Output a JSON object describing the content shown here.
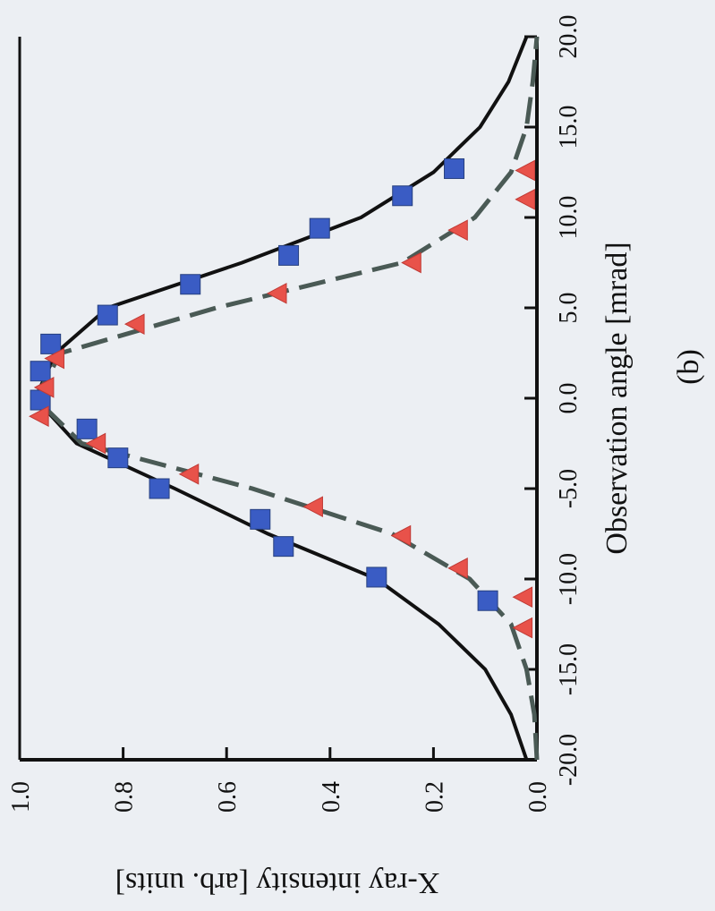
{
  "chart_data": {
    "type": "line",
    "x_label": "Observation angle [mrad]",
    "y_label": "X-ray intensity [arb. units]",
    "annotation": "(b)",
    "xlim": [
      -20,
      20
    ],
    "xticks": [
      {
        "value": -20,
        "label": "-20.0"
      },
      {
        "value": -15,
        "label": "-15.0"
      },
      {
        "value": -10,
        "label": "-10.0"
      },
      {
        "value": -5,
        "label": "-5.0"
      },
      {
        "value": 0,
        "label": "0.0"
      },
      {
        "value": 5,
        "label": "5.0"
      },
      {
        "value": 10,
        "label": "10.0"
      },
      {
        "value": 15,
        "label": "15.0"
      },
      {
        "value": 20,
        "label": "20.0"
      }
    ],
    "ylim": [
      0,
      1
    ],
    "yticks": [
      {
        "value": 0,
        "label": "0.0"
      },
      0.2,
      0.4,
      0.6,
      0.8,
      {
        "value": 1,
        "label": "1.0"
      }
    ],
    "series": [
      {
        "style": "solid",
        "color": "#111111",
        "x": [
          -20,
          -17.5,
          -15,
          -12.5,
          -10,
          -7.5,
          -5,
          -2.5,
          0,
          2.5,
          5,
          7.5,
          10,
          12.5,
          15,
          17.5,
          20
        ],
        "values": [
          0.02,
          0.05,
          0.1,
          0.19,
          0.31,
          0.52,
          0.7,
          0.89,
          0.97,
          0.93,
          0.83,
          0.57,
          0.34,
          0.2,
          0.11,
          0.055,
          0.02
        ]
      },
      {
        "style": "dashed",
        "color": "#4a5a55",
        "x": [
          -20,
          -17.5,
          -15,
          -12.5,
          -10,
          -7.5,
          -5,
          -2.5,
          0,
          2.5,
          5,
          7.5,
          10,
          12.5,
          15,
          17.5,
          20
        ],
        "values": [
          0,
          0.005,
          0.02,
          0.05,
          0.13,
          0.28,
          0.55,
          0.88,
          0.97,
          0.92,
          0.62,
          0.26,
          0.12,
          0.05,
          0.02,
          0.008,
          0
        ]
      },
      {
        "style": "square",
        "color": "#3a5cc4",
        "x": [
          -11.2,
          -9.9,
          -8.2,
          -6.7,
          -5.0,
          -3.3,
          -1.7,
          -0.1,
          1.5,
          3.0,
          4.6,
          6.3,
          7.9,
          9.4,
          11.2,
          12.7
        ],
        "values": [
          0.095,
          0.31,
          0.49,
          0.535,
          0.73,
          0.81,
          0.87,
          0.96,
          0.96,
          0.94,
          0.83,
          0.67,
          0.48,
          0.42,
          0.26,
          0.16
        ]
      },
      {
        "style": "triangle",
        "color": "#e8524a",
        "x": [
          -12.7,
          -11.0,
          -9.4,
          -7.6,
          -6.0,
          -4.2,
          -2.5,
          -1.0,
          0.6,
          2.2,
          4.1,
          5.8,
          7.5,
          9.3,
          11.0,
          12.6
        ],
        "values": [
          0.025,
          0.025,
          0.15,
          0.26,
          0.43,
          0.67,
          0.85,
          0.96,
          0.95,
          0.93,
          0.775,
          0.5,
          0.24,
          0.15,
          0.02,
          0.02
        ]
      }
    ]
  }
}
